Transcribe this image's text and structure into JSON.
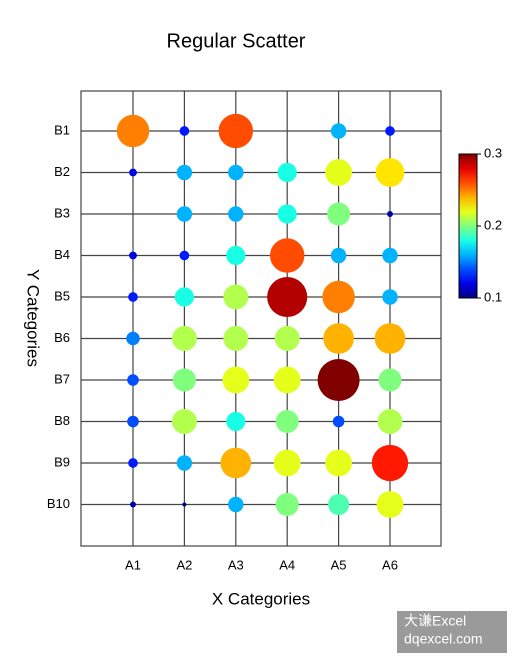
{
  "chart_data": {
    "type": "scatter",
    "title": "Regular Scatter",
    "xlabel": "X Categories",
    "ylabel": "Y Categories",
    "x_categories": [
      "A1",
      "A2",
      "A3",
      "A4",
      "A5",
      "A6"
    ],
    "y_categories": [
      "B1",
      "B2",
      "B3",
      "B4",
      "B5",
      "B6",
      "B7",
      "B8",
      "B9",
      "B10"
    ],
    "values": [
      [
        0.25,
        0.13,
        0.26,
        null,
        0.16,
        0.13
      ],
      [
        0.12,
        0.16,
        0.16,
        0.18,
        0.22,
        0.23
      ],
      [
        null,
        0.16,
        0.16,
        0.18,
        0.2,
        0.11
      ],
      [
        0.12,
        0.13,
        0.18,
        0.26,
        0.16,
        0.16
      ],
      [
        0.13,
        0.18,
        0.21,
        0.29,
        0.25,
        0.16
      ],
      [
        0.15,
        0.21,
        0.21,
        0.21,
        0.24,
        0.24
      ],
      [
        0.14,
        0.2,
        0.22,
        0.22,
        0.3,
        0.2
      ],
      [
        0.14,
        0.21,
        0.18,
        0.2,
        0.14,
        0.21
      ],
      [
        0.13,
        0.16,
        0.24,
        0.22,
        0.22,
        0.27
      ],
      [
        0.11,
        0.1,
        0.16,
        0.2,
        0.19,
        0.22
      ]
    ],
    "colormap": "jet",
    "clim": [
      0.1,
      0.3
    ],
    "cticks": [
      0.1,
      0.2,
      0.3
    ],
    "grid": true,
    "watermark": [
      "大谦Excel",
      "dqexcel.com"
    ]
  }
}
